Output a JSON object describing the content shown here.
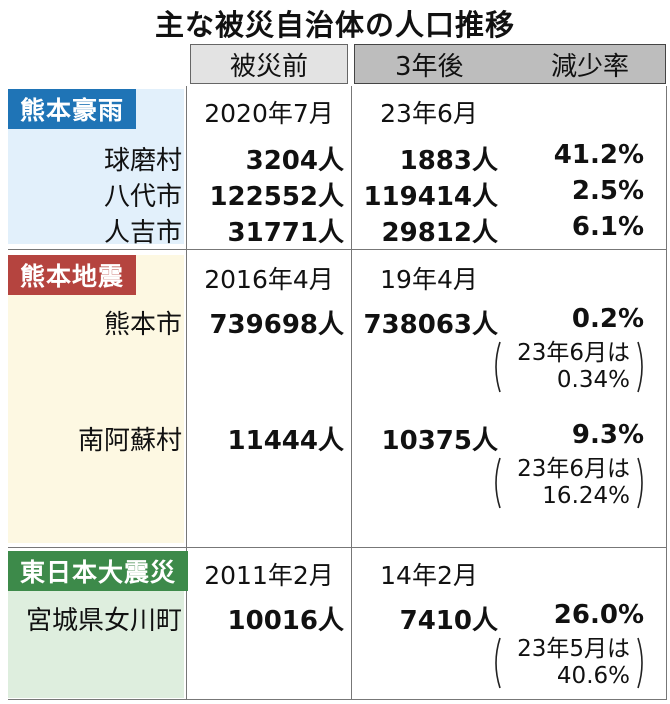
{
  "title": "主な被災自治体の人口推移",
  "header": {
    "before": "被災前",
    "after": "3年後",
    "rate": "減少率"
  },
  "groups": [
    {
      "label": "熊本豪雨",
      "date_before": "2020年7月",
      "date_after": "23年6月",
      "rows": [
        {
          "name": "球磨村",
          "before": "3204人",
          "after": "1883人",
          "rate": "41.2%"
        },
        {
          "name": "八代市",
          "before": "122552人",
          "after": "119414人",
          "rate": "2.5%"
        },
        {
          "name": "人吉市",
          "before": "31771人",
          "after": "29812人",
          "rate": "6.1%"
        }
      ]
    },
    {
      "label": "熊本地震",
      "date_before": "2016年4月",
      "date_after": "19年4月",
      "rows": [
        {
          "name": "熊本市",
          "before": "739698人",
          "after": "738063人",
          "rate": "0.2%",
          "note1": "23年6月は",
          "note2": "0.34%"
        },
        {
          "name": "南阿蘇村",
          "before": "11444人",
          "after": "10375人",
          "rate": "9.3%",
          "note1": "23年6月は",
          "note2": "16.24%"
        }
      ]
    },
    {
      "label": "東日本大震災",
      "date_before": "2011年2月",
      "date_after": "14年2月",
      "rows": [
        {
          "name": "宮城県女川町",
          "before": "10016人",
          "after": "7410人",
          "rate": "26.0%",
          "note1": "23年5月は",
          "note2": "40.6%"
        }
      ]
    }
  ],
  "chart_data": {
    "type": "table",
    "title": "主な被災自治体の人口推移",
    "columns": [
      "被災前",
      "3年後",
      "減少率"
    ],
    "rows": [
      {
        "disaster": "熊本豪雨",
        "municipality": "球磨村",
        "before_date": "2020年7月",
        "before": 3204,
        "after_date": "23年6月",
        "after": 1883,
        "decline_pct": 41.2
      },
      {
        "disaster": "熊本豪雨",
        "municipality": "八代市",
        "before_date": "2020年7月",
        "before": 122552,
        "after_date": "23年6月",
        "after": 119414,
        "decline_pct": 2.5
      },
      {
        "disaster": "熊本豪雨",
        "municipality": "人吉市",
        "before_date": "2020年7月",
        "before": 31771,
        "after_date": "23年6月",
        "after": 29812,
        "decline_pct": 6.1
      },
      {
        "disaster": "熊本地震",
        "municipality": "熊本市",
        "before_date": "2016年4月",
        "before": 739698,
        "after_date": "19年4月",
        "after": 738063,
        "decline_pct": 0.2,
        "note": "23年6月は0.34%"
      },
      {
        "disaster": "熊本地震",
        "municipality": "南阿蘇村",
        "before_date": "2016年4月",
        "before": 11444,
        "after_date": "19年4月",
        "after": 10375,
        "decline_pct": 9.3,
        "note": "23年6月は16.24%"
      },
      {
        "disaster": "東日本大震災",
        "municipality": "宮城県女川町",
        "before_date": "2011年2月",
        "before": 10016,
        "after_date": "14年2月",
        "after": 7410,
        "decline_pct": 26.0,
        "note": "23年5月は40.6%"
      }
    ]
  }
}
